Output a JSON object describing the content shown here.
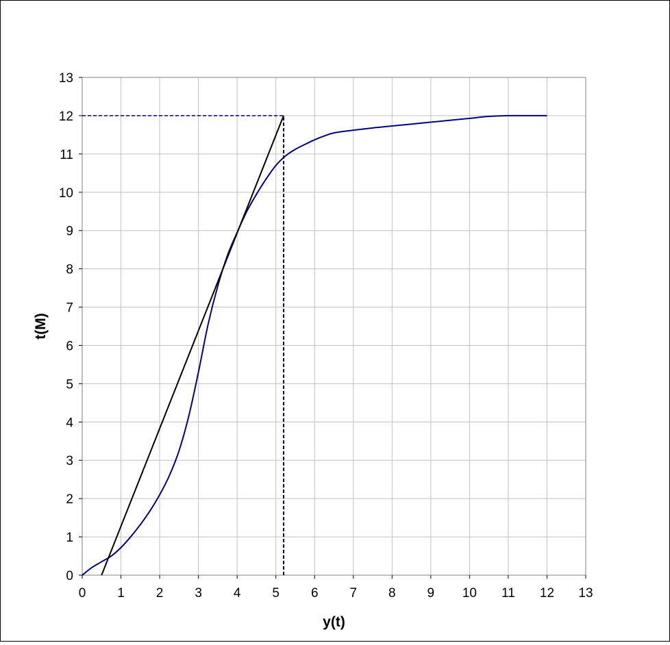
{
  "chart_data": {
    "type": "line",
    "title": "",
    "xlabel": "y(t)",
    "ylabel": "t(M)",
    "xlim": [
      0,
      13
    ],
    "ylim": [
      0,
      13
    ],
    "x_ticks": [
      0,
      1,
      2,
      3,
      4,
      5,
      6,
      7,
      8,
      9,
      10,
      11,
      12,
      13
    ],
    "y_ticks": [
      0,
      1,
      2,
      3,
      4,
      5,
      6,
      7,
      8,
      9,
      10,
      11,
      12,
      13
    ],
    "grid": true,
    "legend": "none",
    "colors": {
      "curve": "#000080",
      "tangent": "#000000",
      "grid": "#c0c0c0",
      "border": "#808080",
      "guide": "#000080"
    },
    "series": [
      {
        "style": "curve",
        "x": [
          0,
          0.25,
          0.5,
          0.75,
          1.0,
          1.25,
          1.5,
          1.75,
          2.0,
          2.25,
          2.5,
          2.75,
          3.0,
          3.25,
          3.5,
          3.75,
          4.0,
          4.25,
          4.5,
          4.75,
          5.0,
          5.25,
          5.5,
          5.75,
          6.0,
          6.25,
          6.5,
          7.0,
          7.5,
          8.0,
          8.5,
          9.0,
          9.5,
          10.0,
          10.5,
          11.0,
          11.5,
          12.0
        ],
        "y": [
          0,
          0.2,
          0.35,
          0.5,
          0.72,
          1.0,
          1.32,
          1.68,
          2.1,
          2.6,
          3.25,
          4.15,
          5.3,
          6.55,
          7.55,
          8.35,
          8.95,
          9.5,
          9.95,
          10.35,
          10.7,
          10.95,
          11.12,
          11.25,
          11.37,
          11.47,
          11.55,
          11.62,
          11.68,
          11.73,
          11.78,
          11.83,
          11.88,
          11.93,
          11.98,
          12.0,
          12.0,
          12.0
        ]
      },
      {
        "style": "tangent",
        "x": [
          0.5,
          5.2
        ],
        "y": [
          0,
          12
        ]
      },
      {
        "style": "guide-horizontal",
        "x": [
          0,
          5.2
        ],
        "y": [
          12,
          12
        ]
      },
      {
        "style": "guide-vertical",
        "x": [
          5.2,
          5.2
        ],
        "y": [
          0,
          12
        ]
      }
    ]
  }
}
